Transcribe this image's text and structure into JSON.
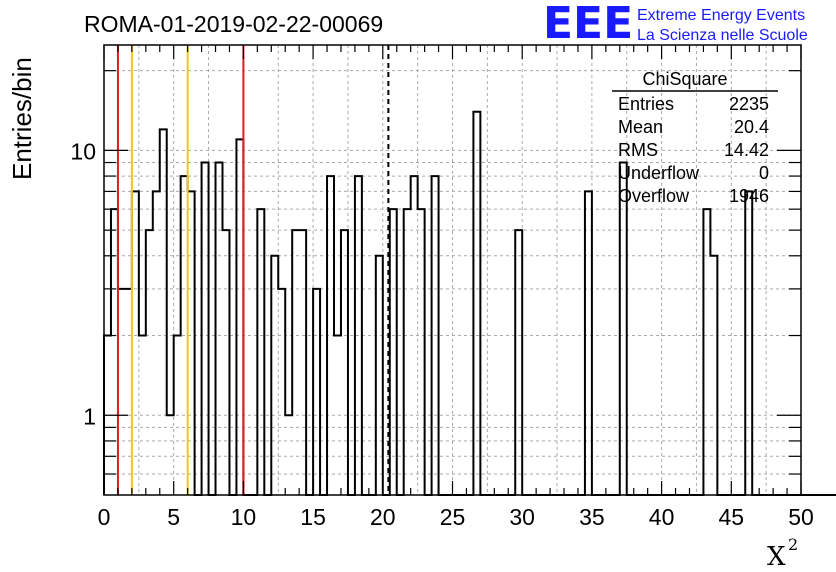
{
  "title": "ROMA-01-2019-02-22-00069",
  "logo": {
    "mark": "EEE",
    "line1": "Extreme Energy Events",
    "line2": "La Scienza nelle Scuole"
  },
  "stats": {
    "title": "ChiSquare",
    "rows": [
      {
        "label": "Entries",
        "value": "2235"
      },
      {
        "label": "Mean",
        "value": "20.4"
      },
      {
        "label": "RMS",
        "value": "14.42"
      },
      {
        "label": "Underflow",
        "value": "0"
      },
      {
        "label": "Overflow",
        "value": "1946"
      }
    ]
  },
  "colors": {
    "histogram": "#000000",
    "red_line": "#e8191f",
    "yellow_line": "#f5c518",
    "dashed_line": "#000000",
    "logo": "#1a1aff"
  },
  "chart_data": {
    "type": "histogram",
    "title": "ROMA-01-2019-02-22-00069",
    "xlabel": "X",
    "xlabel_sup": "2",
    "ylabel": "Entries/bin",
    "yscale": "log",
    "xlim": [
      0,
      50
    ],
    "ylim": [
      0.5,
      25
    ],
    "bin_width": 0.5,
    "grid": true,
    "x_ticks": [
      0,
      5,
      10,
      15,
      20,
      25,
      30,
      35,
      40,
      45,
      50
    ],
    "y_ticks": [
      1,
      10
    ],
    "values": [
      2,
      6,
      3,
      3,
      7,
      2,
      5,
      7,
      12,
      1,
      2,
      8,
      7,
      0,
      9,
      0,
      9,
      5,
      0,
      11,
      0,
      0,
      6,
      0,
      4,
      3,
      1,
      5,
      5,
      0,
      3,
      0,
      8,
      2,
      5,
      0,
      8,
      0,
      0,
      4,
      0,
      6,
      0,
      6,
      8,
      6,
      0,
      8,
      0,
      0,
      0,
      0,
      0,
      14,
      0,
      0,
      0,
      0,
      0,
      5,
      0,
      0,
      0,
      0,
      0,
      0,
      0,
      0,
      0,
      7,
      0,
      0,
      0,
      0,
      9,
      0,
      0,
      0,
      0,
      0,
      0,
      0,
      0,
      0,
      0,
      0,
      6,
      4,
      0,
      0,
      0,
      0,
      7,
      0,
      0,
      0,
      0,
      0,
      0,
      0,
      0,
      0,
      0,
      0,
      0,
      0,
      0,
      0,
      0,
      0,
      0,
      0,
      0,
      0,
      0,
      0,
      0,
      0,
      0,
      0,
      0,
      0,
      0,
      0,
      0,
      0,
      0,
      0,
      0,
      0,
      0,
      0,
      0,
      0,
      0,
      0,
      0,
      0,
      0,
      0,
      0,
      0,
      0,
      0,
      0,
      0,
      0,
      0,
      0,
      0
    ],
    "vertical_lines": [
      {
        "x": 1,
        "color": "red"
      },
      {
        "x": 10,
        "color": "red"
      },
      {
        "x": 2,
        "color": "yellow"
      },
      {
        "x": 6,
        "color": "yellow"
      },
      {
        "x": 20.4,
        "color": "black-dashed"
      }
    ]
  }
}
